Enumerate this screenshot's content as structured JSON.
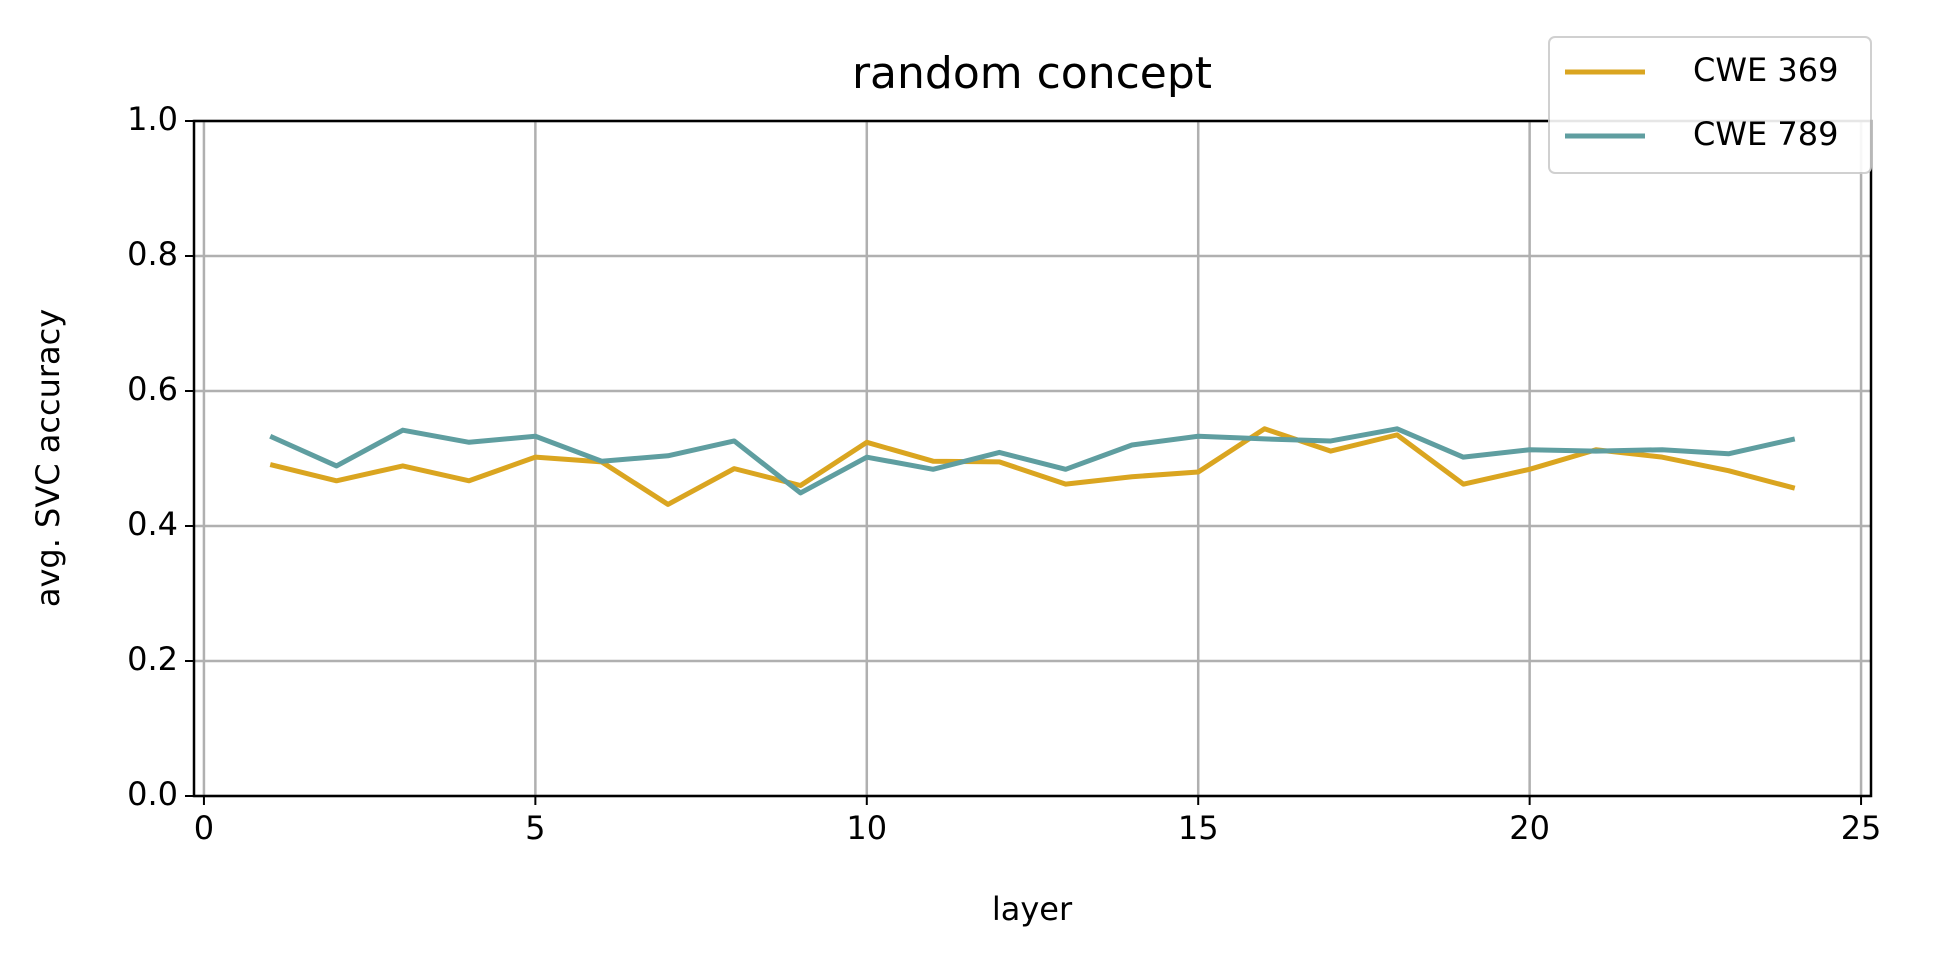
{
  "chart_data": {
    "type": "line",
    "title": "random concept",
    "xlabel": "layer",
    "ylabel": "avg. SVC accuracy",
    "x": [
      1,
      2,
      3,
      4,
      5,
      6,
      7,
      8,
      9,
      10,
      11,
      12,
      13,
      14,
      15,
      16,
      17,
      18,
      19,
      20,
      21,
      22,
      23,
      24
    ],
    "series": [
      {
        "name": "CWE 369",
        "color": "#daa520",
        "values": [
          0.491,
          0.467,
          0.489,
          0.467,
          0.502,
          0.495,
          0.432,
          0.485,
          0.46,
          0.524,
          0.496,
          0.495,
          0.462,
          0.473,
          0.48,
          0.544,
          0.511,
          0.535,
          0.462,
          0.484,
          0.513,
          0.502,
          0.482,
          0.456
        ]
      },
      {
        "name": "CWE 789",
        "color": "#5f9ea0",
        "values": [
          0.533,
          0.489,
          0.542,
          0.524,
          0.533,
          0.496,
          0.504,
          0.526,
          0.449,
          0.502,
          0.484,
          0.509,
          0.484,
          0.52,
          0.533,
          0.529,
          0.526,
          0.544,
          0.502,
          0.513,
          0.511,
          0.513,
          0.507,
          0.529
        ]
      }
    ],
    "xlim": [
      -0.15,
      25.15
    ],
    "xticks": [
      0,
      5,
      10,
      15,
      20,
      25
    ],
    "ylim": [
      0,
      1
    ],
    "yticks": [
      {
        "value": 0,
        "label": "0.0"
      },
      0.2,
      0.4,
      0.6,
      0.8,
      {
        "value": 1,
        "label": "1.0"
      }
    ],
    "grid": true,
    "legend": "upper right"
  }
}
